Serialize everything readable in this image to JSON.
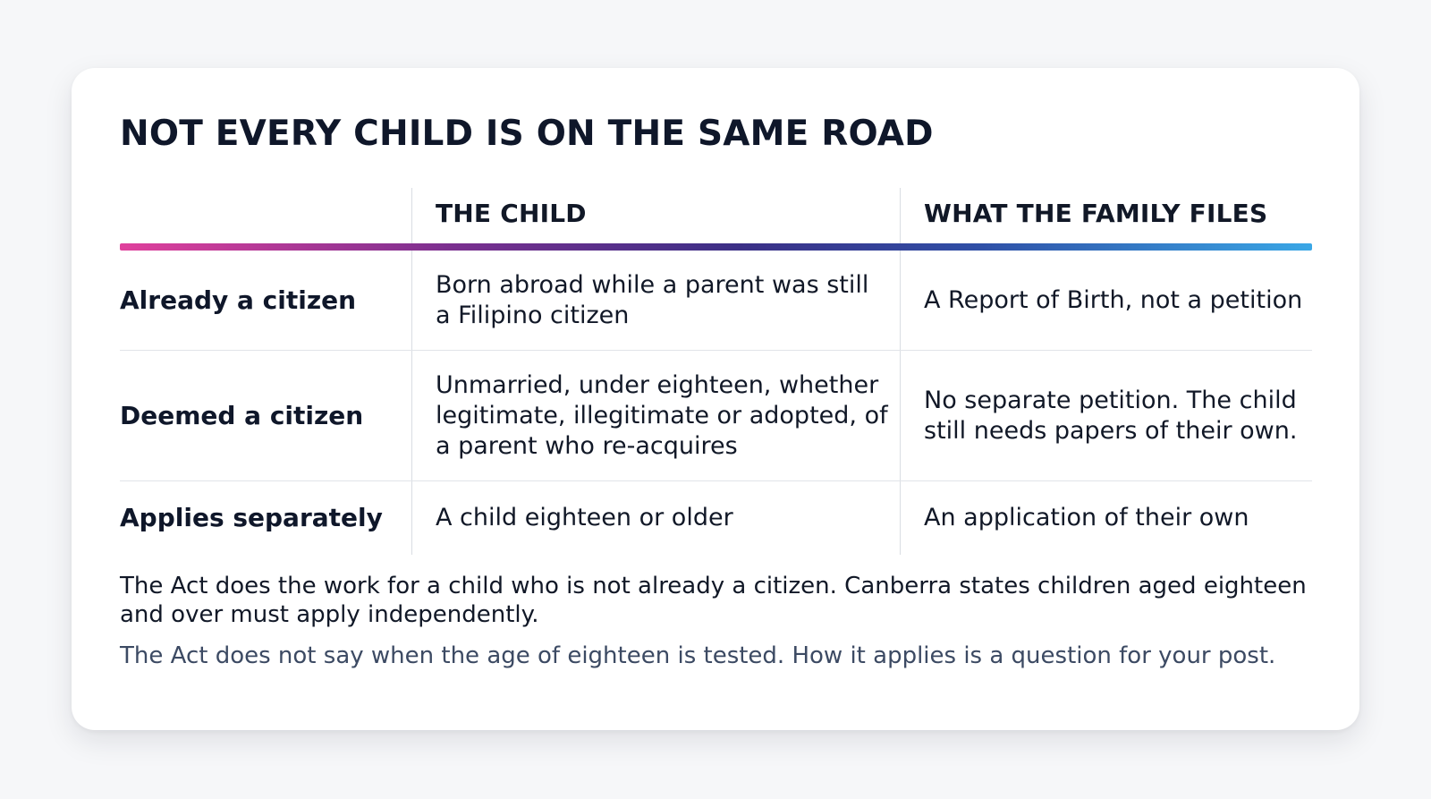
{
  "title": "NOT EVERY CHILD IS ON THE SAME ROAD",
  "table": {
    "headers": [
      "",
      "THE CHILD",
      "WHAT THE FAMILY FILES"
    ],
    "rows": [
      {
        "label": "Already a citizen",
        "child": "Born abroad while a parent was still a Filipino citizen",
        "files": "A Report of Birth, not a petition"
      },
      {
        "label": "Deemed a citizen",
        "child": "Unmarried, under eighteen, whether legitimate, illegitimate or adopted, of a parent who re-acquires",
        "files": "No separate petition. The child still needs papers of their own."
      },
      {
        "label": "Applies separately",
        "child": "A child eighteen or older",
        "files": "An application of their own"
      }
    ]
  },
  "notes": {
    "primary": "The Act does the work for a child who is not already a citizen. Canberra states children aged eighteen and over must apply independently.",
    "secondary": "The Act does not say when the age of eighteen is tested. How it applies is a question for your post."
  },
  "colors": {
    "background": "#f6f7f9",
    "card": "#ffffff",
    "text": "#111827",
    "muted_text": "#3c4a63",
    "gradient_start": "#e0409c",
    "gradient_mid": "#3b2f86",
    "gradient_end": "#3aa7e6"
  }
}
